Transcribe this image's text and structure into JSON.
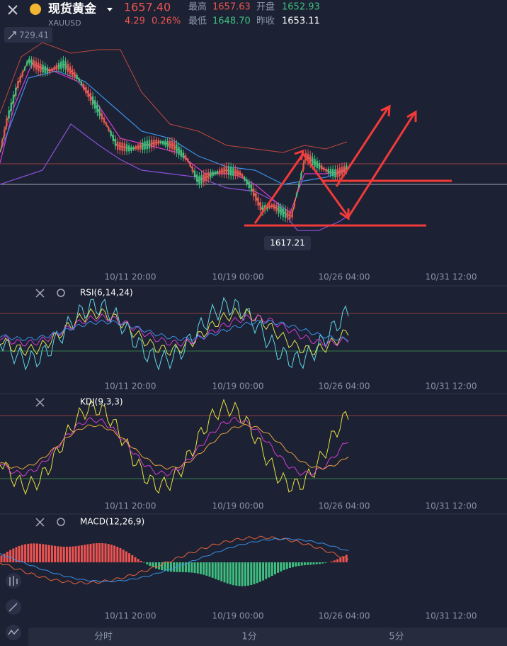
{
  "header": {
    "name": "现货黄金",
    "price": "1657.40",
    "symbol": "XAUUSD",
    "change": "4.29",
    "change_pct": "0.26%",
    "high_label": "最高",
    "high": "1657.63",
    "open_label": "开盘",
    "open": "1652.93",
    "low_label": "最低",
    "low": "1648.70",
    "prev_close_label": "昨收",
    "prev_close": "1653.11"
  },
  "main_panel": {
    "top_price": "729.41",
    "low_marker": "1617.21"
  },
  "time_axis": [
    "10/11 20:00",
    "10/19 00:00",
    "10/26 04:00",
    "10/31 12:00"
  ],
  "indicators": [
    "RSI(6,14,24)",
    "KDJ(9,3,3)",
    "MACD(12,26,9)"
  ],
  "tabs": [
    "分时",
    "1分",
    "5分"
  ]
}
